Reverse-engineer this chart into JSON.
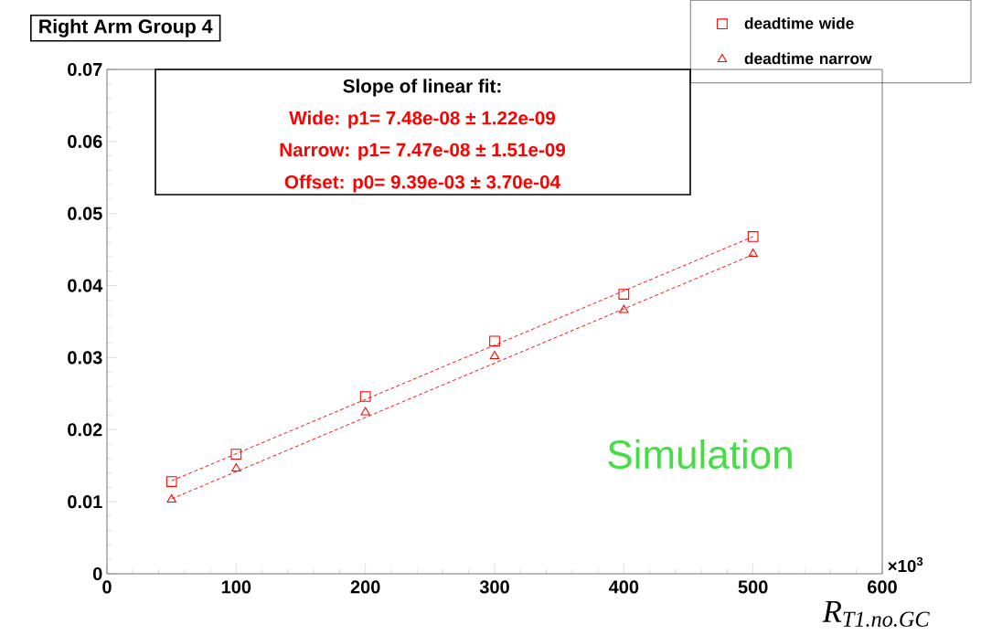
{
  "chart_data": {
    "type": "scatter",
    "title": "Right Arm Group 4",
    "xlabel": "R$_{T1.no.GC}$",
    "xlim": [
      0,
      600
    ],
    "xticks": [
      0,
      100,
      200,
      300,
      400,
      500,
      600
    ],
    "ylim": [
      0,
      0.07
    ],
    "yticks": [
      0,
      0.01,
      0.02,
      0.03,
      0.04,
      0.05,
      0.06,
      0.07
    ],
    "grid": false,
    "legend": "top right",
    "series": [
      {
        "name": "deadtime wide",
        "marker": "square",
        "color": "#ff0000",
        "x": [
          50,
          100,
          200,
          300,
          400,
          500
        ],
        "values": [
          0.0128,
          0.0166,
          0.0246,
          0.0323,
          0.0388,
          0.0468
        ]
      },
      {
        "name": "deadtime narrow",
        "marker": "triangle",
        "color": "#ff0000",
        "x": [
          50,
          100,
          200,
          300,
          400,
          500
        ],
        "values": [
          0.0103,
          0.0146,
          0.0224,
          0.0302,
          0.0366,
          0.0444
        ]
      },
      {
        "type": "line",
        "marker": "none",
        "line_style": "dashed",
        "color": "#ff0000",
        "x": [
          50,
          500
        ],
        "values": [
          0.0129,
          0.0468
        ]
      },
      {
        "type": "line",
        "marker": "none",
        "line_style": "dashed",
        "color": "#ff0000",
        "x": [
          50,
          500
        ],
        "values": [
          0.0104,
          0.0443
        ]
      }
    ],
    "annotations": [
      "Slope of linear fit:",
      "Wide:   p1=  7.48e-08 ± 1.22e-09",
      "Narrow: p1=  7.47e-08 ± 1.51e-09",
      "Offset: p0= 9.39e-03 ± 3.70e-04",
      "Simulation",
      "×10$^{3}$"
    ]
  }
}
